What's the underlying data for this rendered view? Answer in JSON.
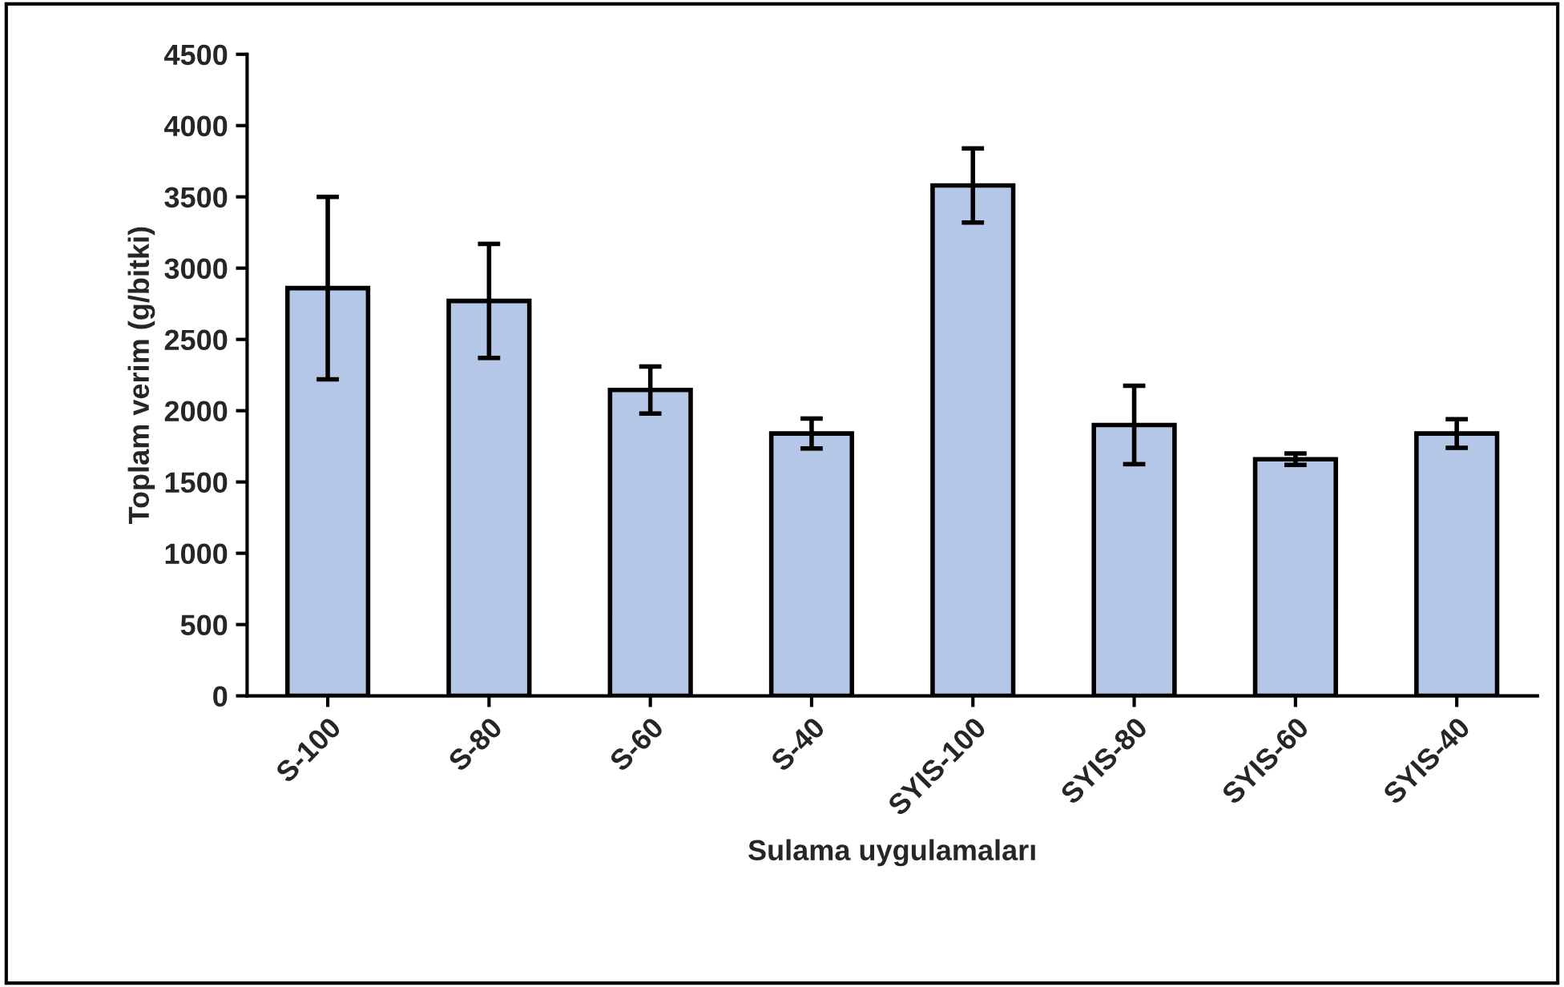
{
  "chart_data": {
    "type": "bar",
    "xlabel": "Sulama uygulamaları",
    "ylabel": "Toplam verim (g/bitki)",
    "categories": [
      "S-100",
      "S-80",
      "S-60",
      "S-40",
      "SYIS-100",
      "SYIS-80",
      "SYIS-60",
      "SYIS-40"
    ],
    "values": [
      2860,
      2770,
      2145,
      1840,
      3580,
      1900,
      1660,
      1840
    ],
    "errors": [
      640,
      400,
      165,
      105,
      260,
      275,
      40,
      100
    ],
    "color": "#b4c7e7",
    "ylim": [
      0,
      4500
    ],
    "yticks": [
      0,
      500,
      1000,
      1500,
      2000,
      2500,
      3000,
      3500,
      4000,
      4500
    ],
    "grid": false
  }
}
